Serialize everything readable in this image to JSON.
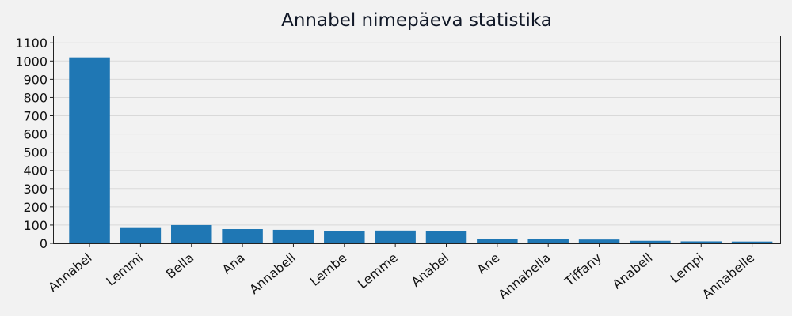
{
  "chart_data": {
    "type": "bar",
    "title": "Annabel nimepäeva statistika",
    "xlabel": "",
    "ylabel": "",
    "categories": [
      "Annabel",
      "Lemmi",
      "Bella",
      "Ana",
      "Annabell",
      "Lembe",
      "Lemme",
      "Anabel",
      "Ane",
      "Annabella",
      "Tiffany",
      "Anabell",
      "Lempi",
      "Annabelle"
    ],
    "values": [
      1020,
      88,
      100,
      78,
      74,
      66,
      70,
      66,
      22,
      22,
      21,
      14,
      11,
      10
    ],
    "ylim": [
      0,
      1140
    ],
    "yticks": [
      0,
      100,
      200,
      300,
      400,
      500,
      600,
      700,
      800,
      900,
      1000,
      1100
    ],
    "grid": "y",
    "bar_color": "#1f77b4",
    "background_color": "#f2f2f2",
    "grid_color": "#d9d9d9"
  }
}
